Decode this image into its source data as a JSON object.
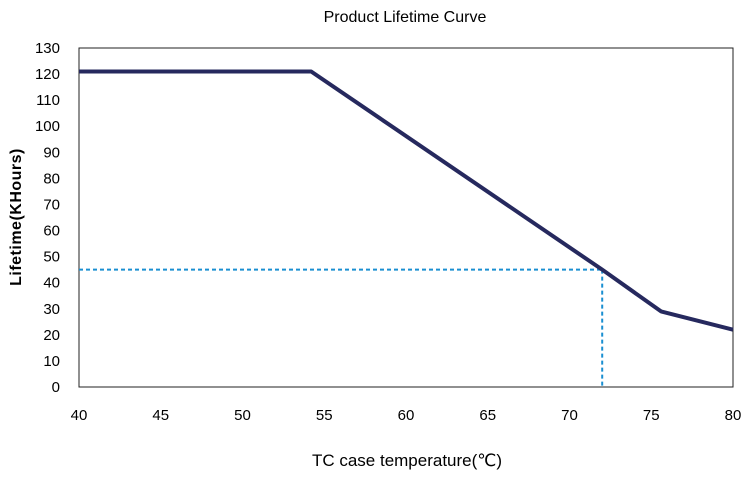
{
  "chart_data": {
    "type": "line",
    "title": "Product Lifetime Curve",
    "xlabel": "TC case  temperature(℃)",
    "ylabel": "Lifetime(KHours)",
    "xlim": [
      40,
      80
    ],
    "ylim": [
      0,
      130
    ],
    "x_ticks": [
      40,
      45,
      50,
      55,
      60,
      65,
      70,
      75,
      80
    ],
    "y_ticks": [
      0,
      10,
      20,
      30,
      40,
      50,
      60,
      70,
      80,
      90,
      100,
      110,
      120,
      130
    ],
    "grid": false,
    "legend": "none",
    "series": [
      {
        "color": "#26295e",
        "points": [
          {
            "x": 40,
            "y": 121
          },
          {
            "x": 54.2,
            "y": 121
          },
          {
            "x": 72,
            "y": 45
          },
          {
            "x": 75.6,
            "y": 29
          },
          {
            "x": 80,
            "y": 22
          }
        ]
      }
    ],
    "reference_lines": {
      "color": "#1a8fd1",
      "style": "dashed",
      "point": {
        "x": 72,
        "y": 45
      }
    }
  }
}
